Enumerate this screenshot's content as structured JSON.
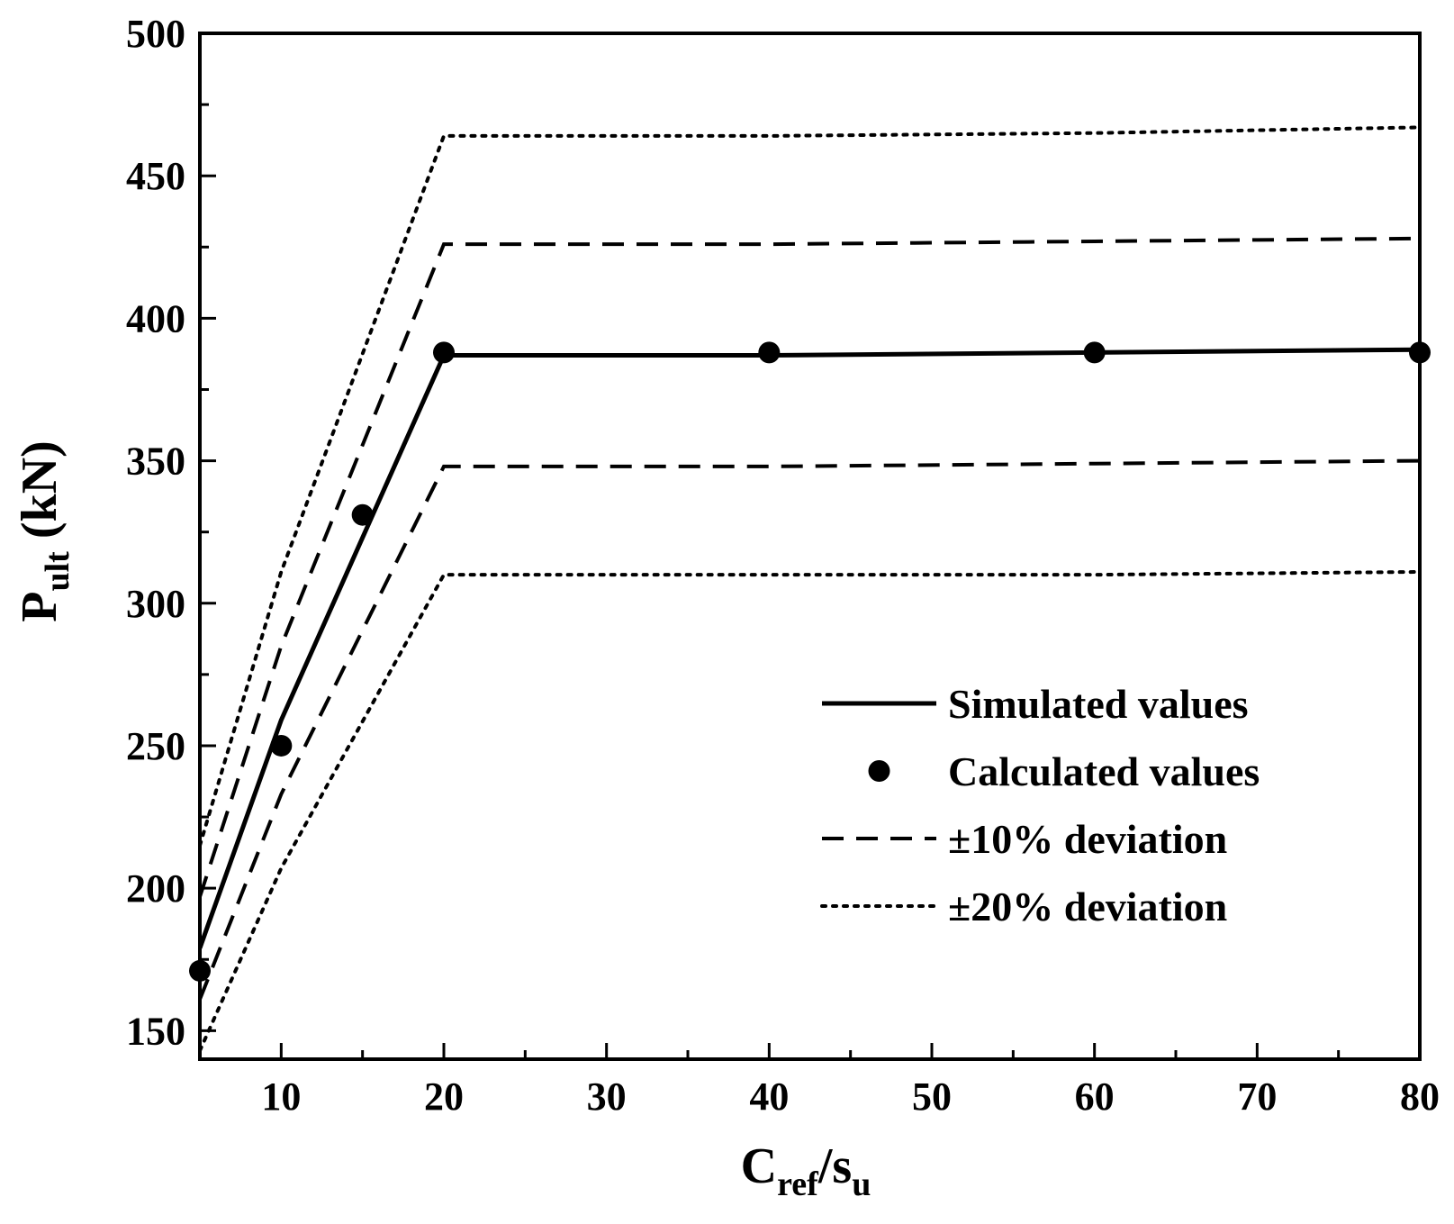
{
  "chart_data": {
    "type": "line",
    "title": "",
    "xlabel": {
      "main": "C",
      "sub": "ref",
      "sep": "/s",
      "sub2": "u"
    },
    "ylabel": {
      "main": "P",
      "sub": "ult",
      "unit": " (kN)"
    },
    "xlim": [
      5,
      80
    ],
    "ylim": [
      140,
      500
    ],
    "x_ticks": [
      10,
      20,
      30,
      40,
      50,
      60,
      70,
      80
    ],
    "x_tick_labels": [
      "10",
      "20",
      "30",
      "40",
      "50",
      "60",
      "70",
      "80"
    ],
    "y_ticks": [
      150,
      200,
      250,
      300,
      350,
      400,
      450,
      500
    ],
    "y_tick_labels": [
      "150",
      "200",
      "250",
      "300",
      "350",
      "400",
      "450",
      "500"
    ],
    "x_minor_step": 5,
    "y_minor_step": 25,
    "legend_position": "lower-right",
    "series": [
      {
        "name": "Simulated values",
        "style": "solid",
        "x": [
          5,
          10,
          20,
          40,
          60,
          80
        ],
        "y": [
          179,
          259,
          387,
          387,
          388,
          389
        ]
      },
      {
        "name": "Calculated values",
        "style": "marker",
        "x": [
          5,
          10,
          15,
          20,
          40,
          60,
          80
        ],
        "y": [
          171,
          250,
          331,
          388,
          388,
          388,
          388
        ]
      },
      {
        "name": "±10% deviation",
        "style": "dashed",
        "legend": true,
        "x": [
          5,
          10,
          20,
          40,
          60,
          80
        ],
        "y": [
          197,
          285,
          426,
          426,
          427,
          428
        ]
      },
      {
        "name": "±10% deviation (lower)",
        "style": "dashed",
        "legend": false,
        "x": [
          5,
          10,
          20,
          40,
          60,
          80
        ],
        "y": [
          161,
          233,
          348,
          348,
          349,
          350
        ]
      },
      {
        "name": "±20% deviation",
        "style": "dotted",
        "legend": true,
        "x": [
          5,
          10,
          20,
          40,
          60,
          80
        ],
        "y": [
          215,
          311,
          464,
          464,
          465,
          467
        ]
      },
      {
        "name": "±20% deviation (lower)",
        "style": "dotted",
        "legend": false,
        "x": [
          5,
          10,
          20,
          40,
          60,
          80
        ],
        "y": [
          143,
          207,
          310,
          310,
          310,
          311
        ]
      }
    ],
    "legend": [
      {
        "label": "Simulated values",
        "style": "solid"
      },
      {
        "label": "Calculated values",
        "style": "marker"
      },
      {
        "label": "±10% deviation",
        "style": "dashed"
      },
      {
        "label": "±20% deviation",
        "style": "dotted"
      }
    ]
  }
}
